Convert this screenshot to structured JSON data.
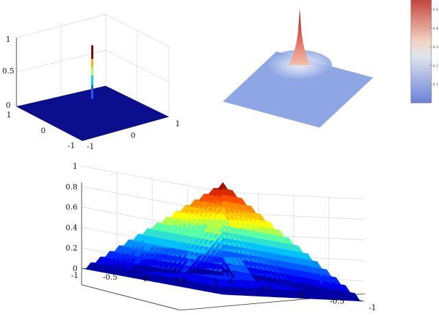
{
  "chart_data": [
    {
      "type": "surface",
      "panel": "top-left",
      "title": "",
      "xlabel": "",
      "ylabel": "",
      "zlabel": "",
      "x_ticks": [
        "-1",
        "0",
        "1"
      ],
      "y_ticks": [
        "1",
        "0",
        "-1"
      ],
      "z_ticks": [
        "0",
        "0.5",
        "1"
      ],
      "xlim": [
        -1,
        1
      ],
      "ylim": [
        -1,
        1
      ],
      "zlim": [
        0,
        1
      ],
      "grid": true,
      "colormap": "jet",
      "surface": "flat at z=0 with a narrow spike to z=1 at the centre",
      "peak": {
        "x": 0,
        "y": 0,
        "z": 1
      },
      "base_value": 0
    },
    {
      "type": "surface",
      "panel": "top-right",
      "title": "",
      "grid": false,
      "axes_visible": false,
      "colormap": "coolwarm",
      "surface": "flat plane with a sharp peak at the centre",
      "peak": {
        "x": 0,
        "y": 0
      },
      "colorbar": {
        "ticks": [
          "0.1",
          "0.2",
          "0.3",
          "0.4",
          "0.5"
        ],
        "range": [
          0,
          0.55
        ],
        "placement": "right"
      }
    },
    {
      "type": "surface",
      "panel": "bottom",
      "title": "",
      "xlabel": "",
      "ylabel": "",
      "zlabel": "",
      "x_ticks": [
        "-1",
        "-0.5",
        "0",
        "0.5",
        "1"
      ],
      "y_ticks": [
        "-1",
        "-0.5",
        "0",
        "0.5",
        "1"
      ],
      "z_ticks": [
        "0",
        "0.2",
        "0.4",
        "0.6",
        "0.8",
        "1"
      ],
      "xlim": [
        -1,
        1
      ],
      "ylim": [
        -1,
        1
      ],
      "zlim": [
        0,
        1
      ],
      "grid": true,
      "colormap": "jet",
      "surface": "pyramid z = 1 - max(|x|,|y|), peak 1 at centre, 0 on the boundary",
      "peak": {
        "x": 0,
        "y": 0,
        "z": 1
      },
      "base_value": 0
    }
  ]
}
